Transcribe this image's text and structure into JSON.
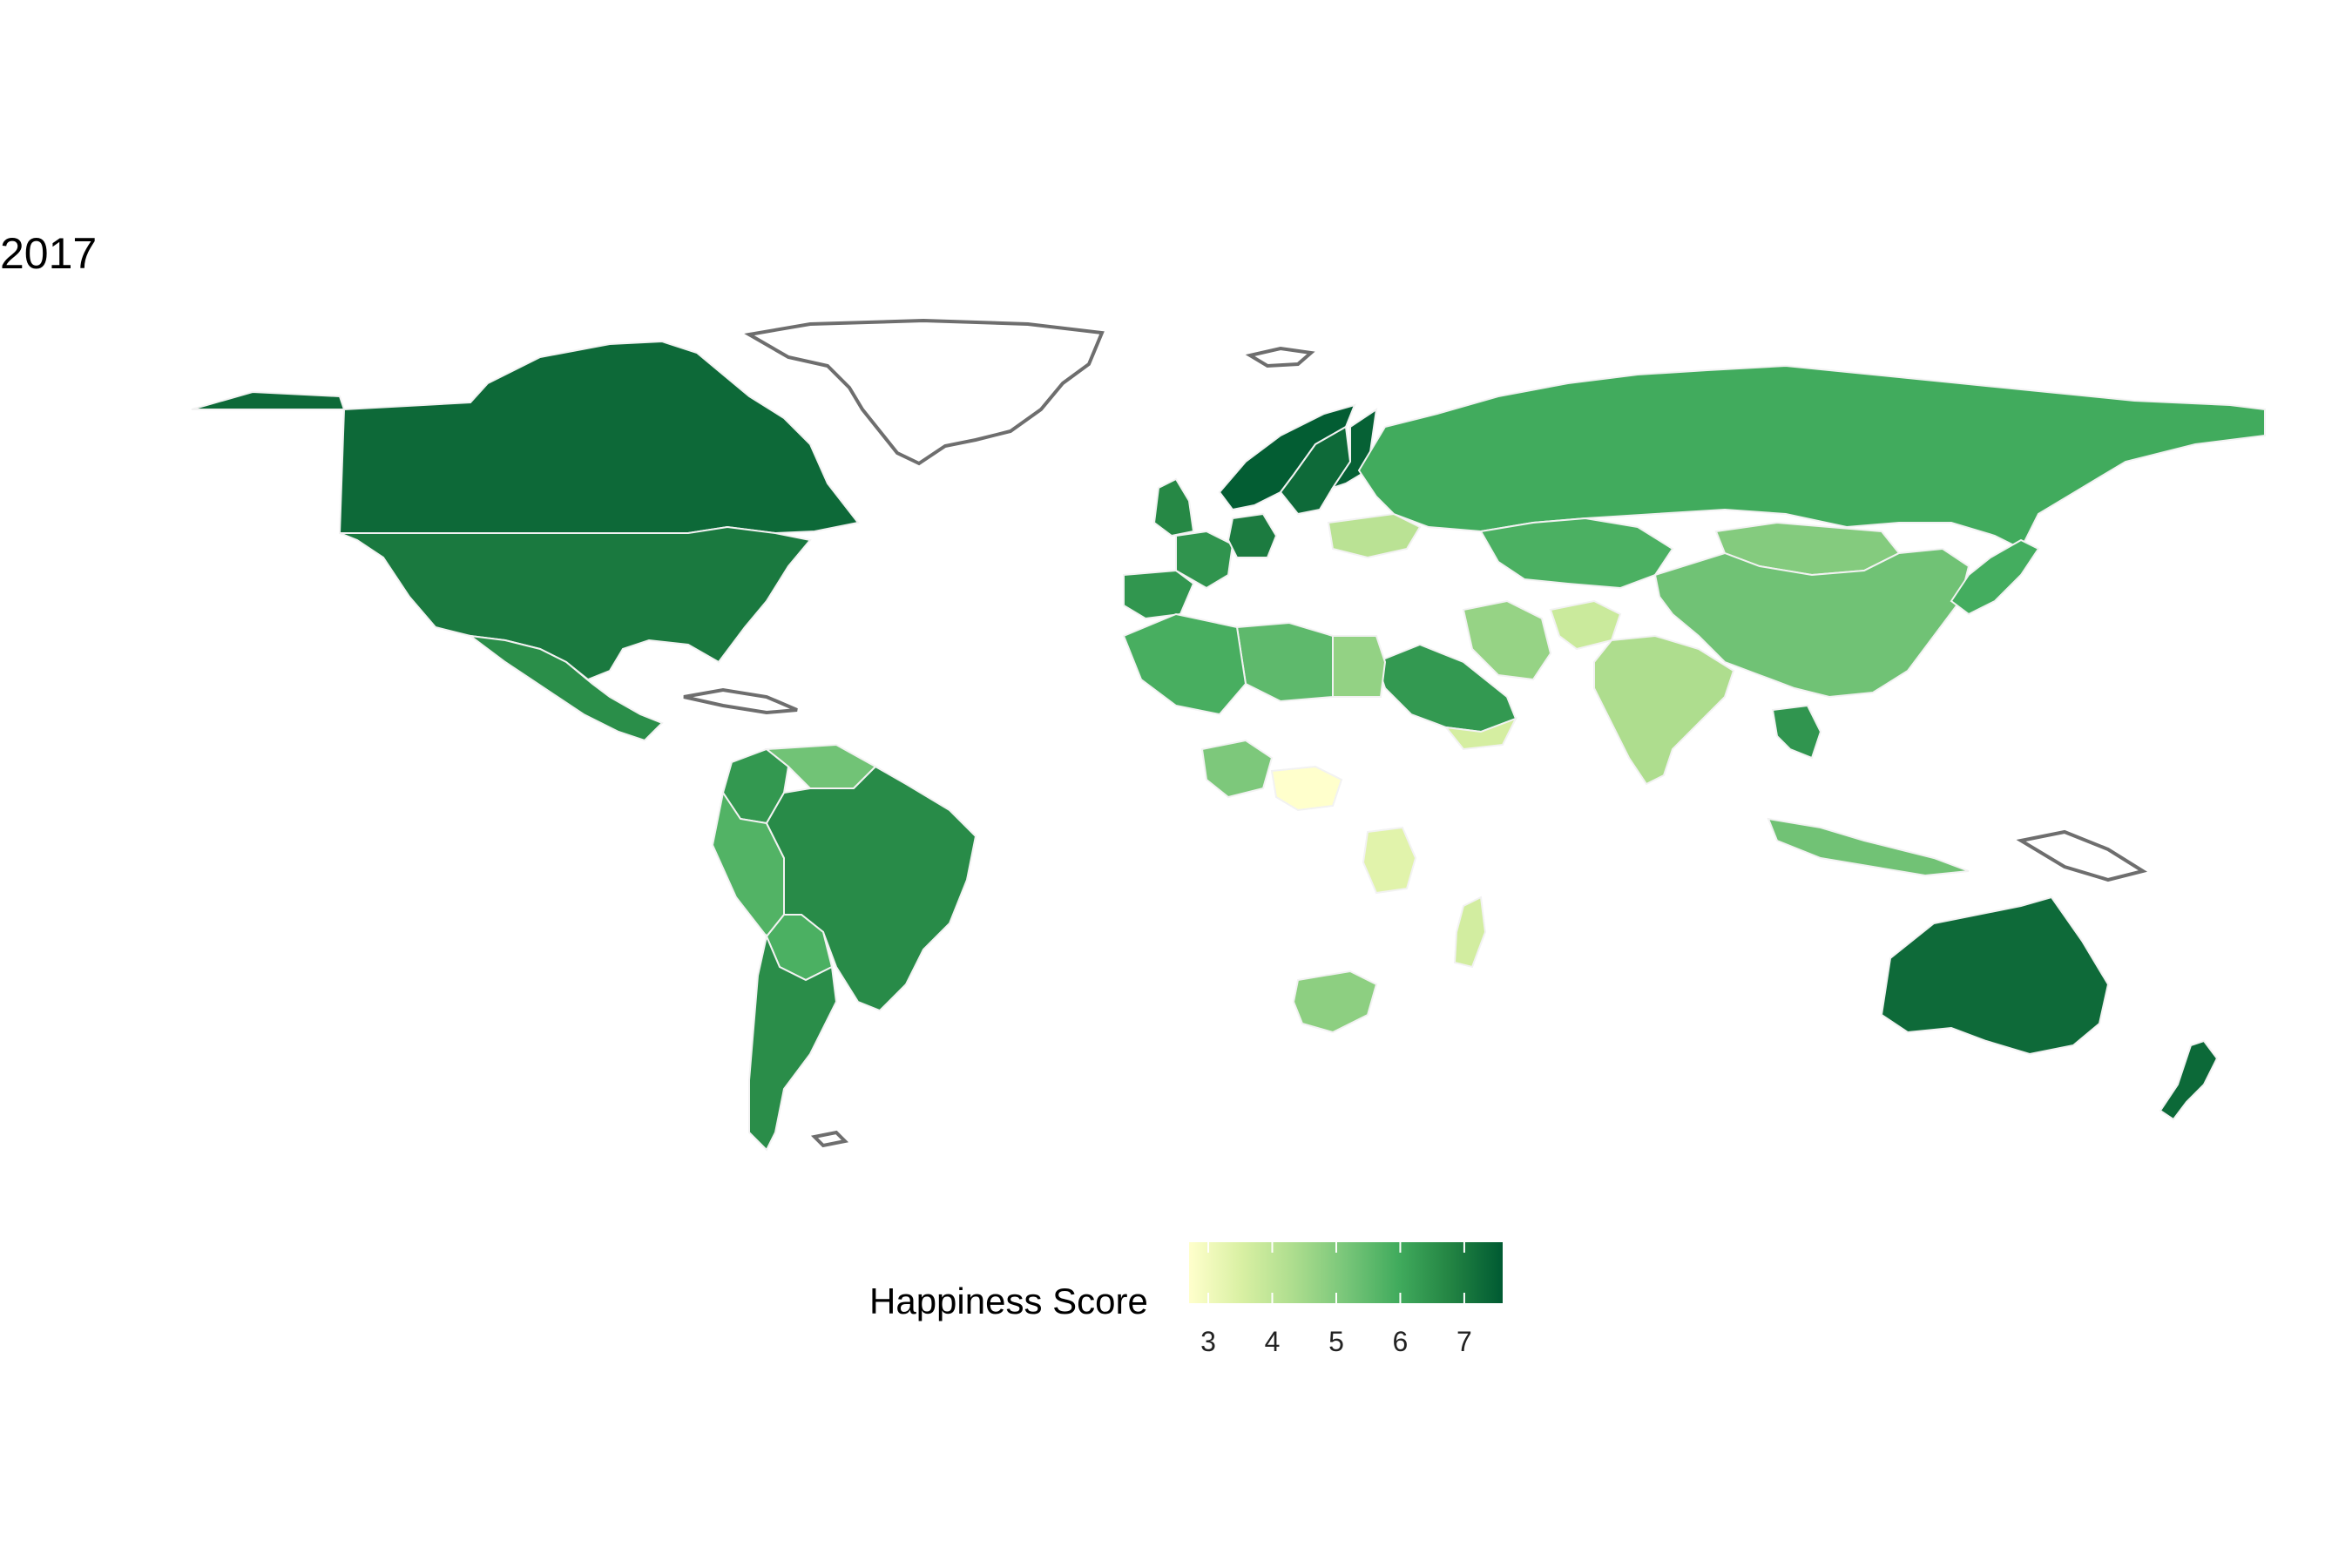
{
  "title": "2017",
  "legend": {
    "title": "Happiness Score",
    "min": 2.7,
    "max": 7.6,
    "ticks": [
      3,
      4,
      5,
      6,
      7
    ],
    "tick_labels": [
      "3",
      "4",
      "5",
      "6",
      "7"
    ],
    "colors": [
      "#ffffcc",
      "#d9f0a3",
      "#addd8e",
      "#78c679",
      "#41ab5d",
      "#238443",
      "#005a32"
    ]
  },
  "colors": {
    "no_data_outline": "#6e6e6e",
    "border": "#f2f2f2",
    "background": "#ffffff"
  },
  "regions": [
    {
      "name": "Canada",
      "score": 7.3
    },
    {
      "name": "United States",
      "score": 6.99
    },
    {
      "name": "Mexico",
      "score": 6.58
    },
    {
      "name": "Brazil",
      "score": 6.64
    },
    {
      "name": "Argentina",
      "score": 6.6
    },
    {
      "name": "Colombia",
      "score": 6.36
    },
    {
      "name": "Peru",
      "score": 5.72
    },
    {
      "name": "Bolivia",
      "score": 5.82
    },
    {
      "name": "Venezuela",
      "score": 5.25
    },
    {
      "name": "Norway",
      "score": 7.54
    },
    {
      "name": "Sweden",
      "score": 7.28
    },
    {
      "name": "Finland",
      "score": 7.47
    },
    {
      "name": "United Kingdom",
      "score": 6.71
    },
    {
      "name": "France",
      "score": 6.44
    },
    {
      "name": "Germany",
      "score": 6.95
    },
    {
      "name": "Spain",
      "score": 6.4
    },
    {
      "name": "Ukraine",
      "score": 4.1
    },
    {
      "name": "Russia",
      "score": 5.96
    },
    {
      "name": "Kazakhstan",
      "score": 5.82
    },
    {
      "name": "Mongolia",
      "score": 4.96
    },
    {
      "name": "China",
      "score": 5.27
    },
    {
      "name": "India",
      "score": 4.32
    },
    {
      "name": "Japan",
      "score": 5.92
    },
    {
      "name": "Saudi Arabia",
      "score": 6.34
    },
    {
      "name": "Iran",
      "score": 4.69
    },
    {
      "name": "Afghanistan",
      "score": 3.79
    },
    {
      "name": "Yemen",
      "score": 3.59
    },
    {
      "name": "Egypt",
      "score": 4.74
    },
    {
      "name": "Algeria",
      "score": 5.87
    },
    {
      "name": "Libya",
      "score": 5.53
    },
    {
      "name": "Nigeria",
      "score": 5.07
    },
    {
      "name": "Central African Republic",
      "score": 2.69
    },
    {
      "name": "Tanzania",
      "score": 3.35
    },
    {
      "name": "South Africa",
      "score": 4.83
    },
    {
      "name": "Madagascar",
      "score": 3.64
    },
    {
      "name": "Thailand",
      "score": 6.42
    },
    {
      "name": "Indonesia",
      "score": 5.26
    },
    {
      "name": "Australia",
      "score": 7.28
    },
    {
      "name": "New Zealand",
      "score": 7.31
    }
  ]
}
